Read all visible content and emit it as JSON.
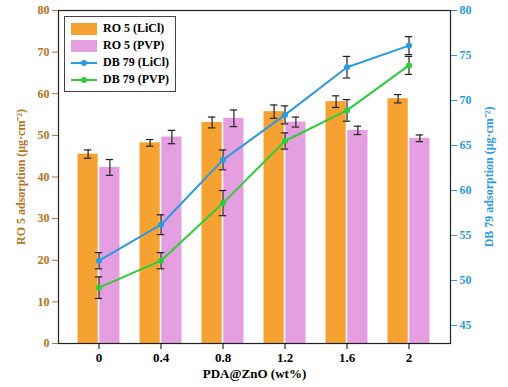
{
  "chart_data": {
    "type": "bar",
    "x_label": "PDA@ZnO (wt%)",
    "y_label": "RO 5 adsorption (μg·cm⁻²)",
    "y2_label": "DB 79 adsorption (μg·cm⁻²)",
    "categories": [
      "0",
      "0.4",
      "0.8",
      "1.2",
      "1.6",
      "2"
    ],
    "ylim": [
      0,
      80
    ],
    "yticks": [
      0,
      10,
      20,
      30,
      40,
      50,
      60,
      70,
      80
    ],
    "y2lim": [
      43,
      80
    ],
    "y2ticks": [
      45,
      50,
      55,
      60,
      65,
      70,
      75,
      80
    ],
    "legend": "upper left",
    "series": [
      {
        "name": "RO 5 (LiCl)",
        "type": "bar",
        "color": "#f5a232",
        "values": [
          45.5,
          48.2,
          53.1,
          55.7,
          58.1,
          58.8
        ],
        "error": [
          1.0,
          0.8,
          1.3,
          1.6,
          1.4,
          1.0
        ]
      },
      {
        "name": "RO 5 (PVP)",
        "type": "bar",
        "color": "#e59ee0",
        "values": [
          42.3,
          49.6,
          54.1,
          53.2,
          51.2,
          49.3
        ],
        "error": [
          1.9,
          1.6,
          2.0,
          1.2,
          1.0,
          0.8
        ]
      },
      {
        "name": "DB 79 (LiCl)",
        "type": "line",
        "axis": "y2",
        "color": "#2a9be0",
        "marker": "circle",
        "values": [
          52.2,
          56.2,
          63.4,
          68.4,
          73.7,
          76.1
        ],
        "error": [
          0.9,
          1.1,
          1.1,
          1.0,
          1.2,
          1.0
        ]
      },
      {
        "name": "DB 79 (PVP)",
        "type": "line",
        "axis": "y2",
        "color": "#2ecc3a",
        "marker": "circle",
        "values": [
          49.2,
          52.2,
          58.6,
          65.5,
          68.9,
          73.9
        ],
        "error": [
          1.2,
          0.9,
          1.4,
          0.9,
          1.2,
          1.0
        ]
      }
    ]
  }
}
